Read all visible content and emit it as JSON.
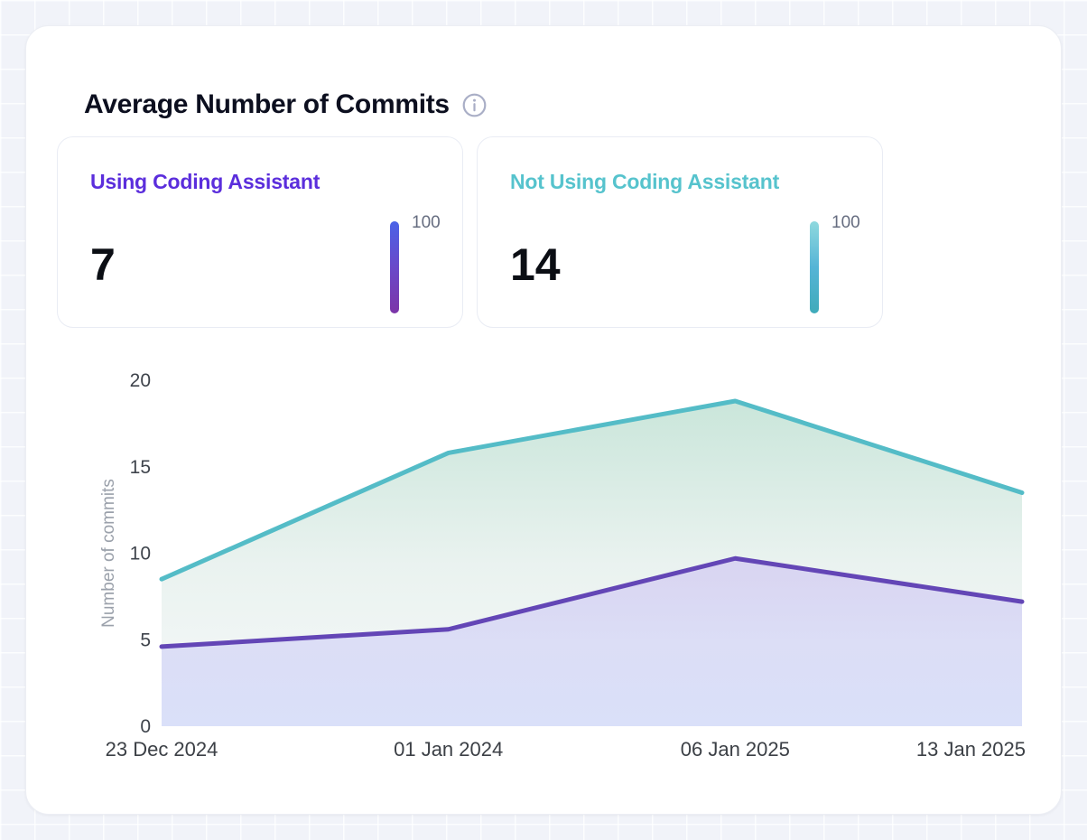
{
  "header": {
    "title": "Average Number of Commits",
    "info_icon": "info-icon"
  },
  "stats": [
    {
      "label": "Using Coding Assistant",
      "label_color": "#5B2EDC",
      "value": "7",
      "gauge_label": "100",
      "gauge_gradient": [
        "#4A63E7",
        "#6A49C9",
        "#7C35A8"
      ]
    },
    {
      "label": "Not Using Coding Assistant",
      "label_color": "#56C3CD",
      "value": "14",
      "gauge_label": "100",
      "gauge_gradient": [
        "#8FD9DE",
        "#55B4D6",
        "#3FABBA"
      ]
    }
  ],
  "chart_data": {
    "type": "area",
    "x": [
      "23 Dec 2024",
      "01 Jan 2024",
      "06 Jan 2025",
      "13 Jan 2025"
    ],
    "series": [
      {
        "name": "Not Using Coding Assistant",
        "color": "#54BCC7",
        "values": [
          8.5,
          15.8,
          18.8,
          13.5
        ],
        "fill": [
          "#C8E5D9",
          "#E9F2EF",
          "#F6F8F9"
        ]
      },
      {
        "name": "Using Coding Assistant",
        "color": "#6346B6",
        "values": [
          4.6,
          5.6,
          9.7,
          7.2
        ],
        "fill": [
          "#D8D3F1",
          "#DBDDF6",
          "#D9DFF9"
        ]
      }
    ],
    "title": "Average Number of Commits",
    "xlabel": "",
    "ylabel": "Number of commits",
    "ylim": [
      0,
      20
    ],
    "yticks": [
      0,
      5,
      10,
      15,
      20
    ],
    "grid": false,
    "legend": "none"
  }
}
